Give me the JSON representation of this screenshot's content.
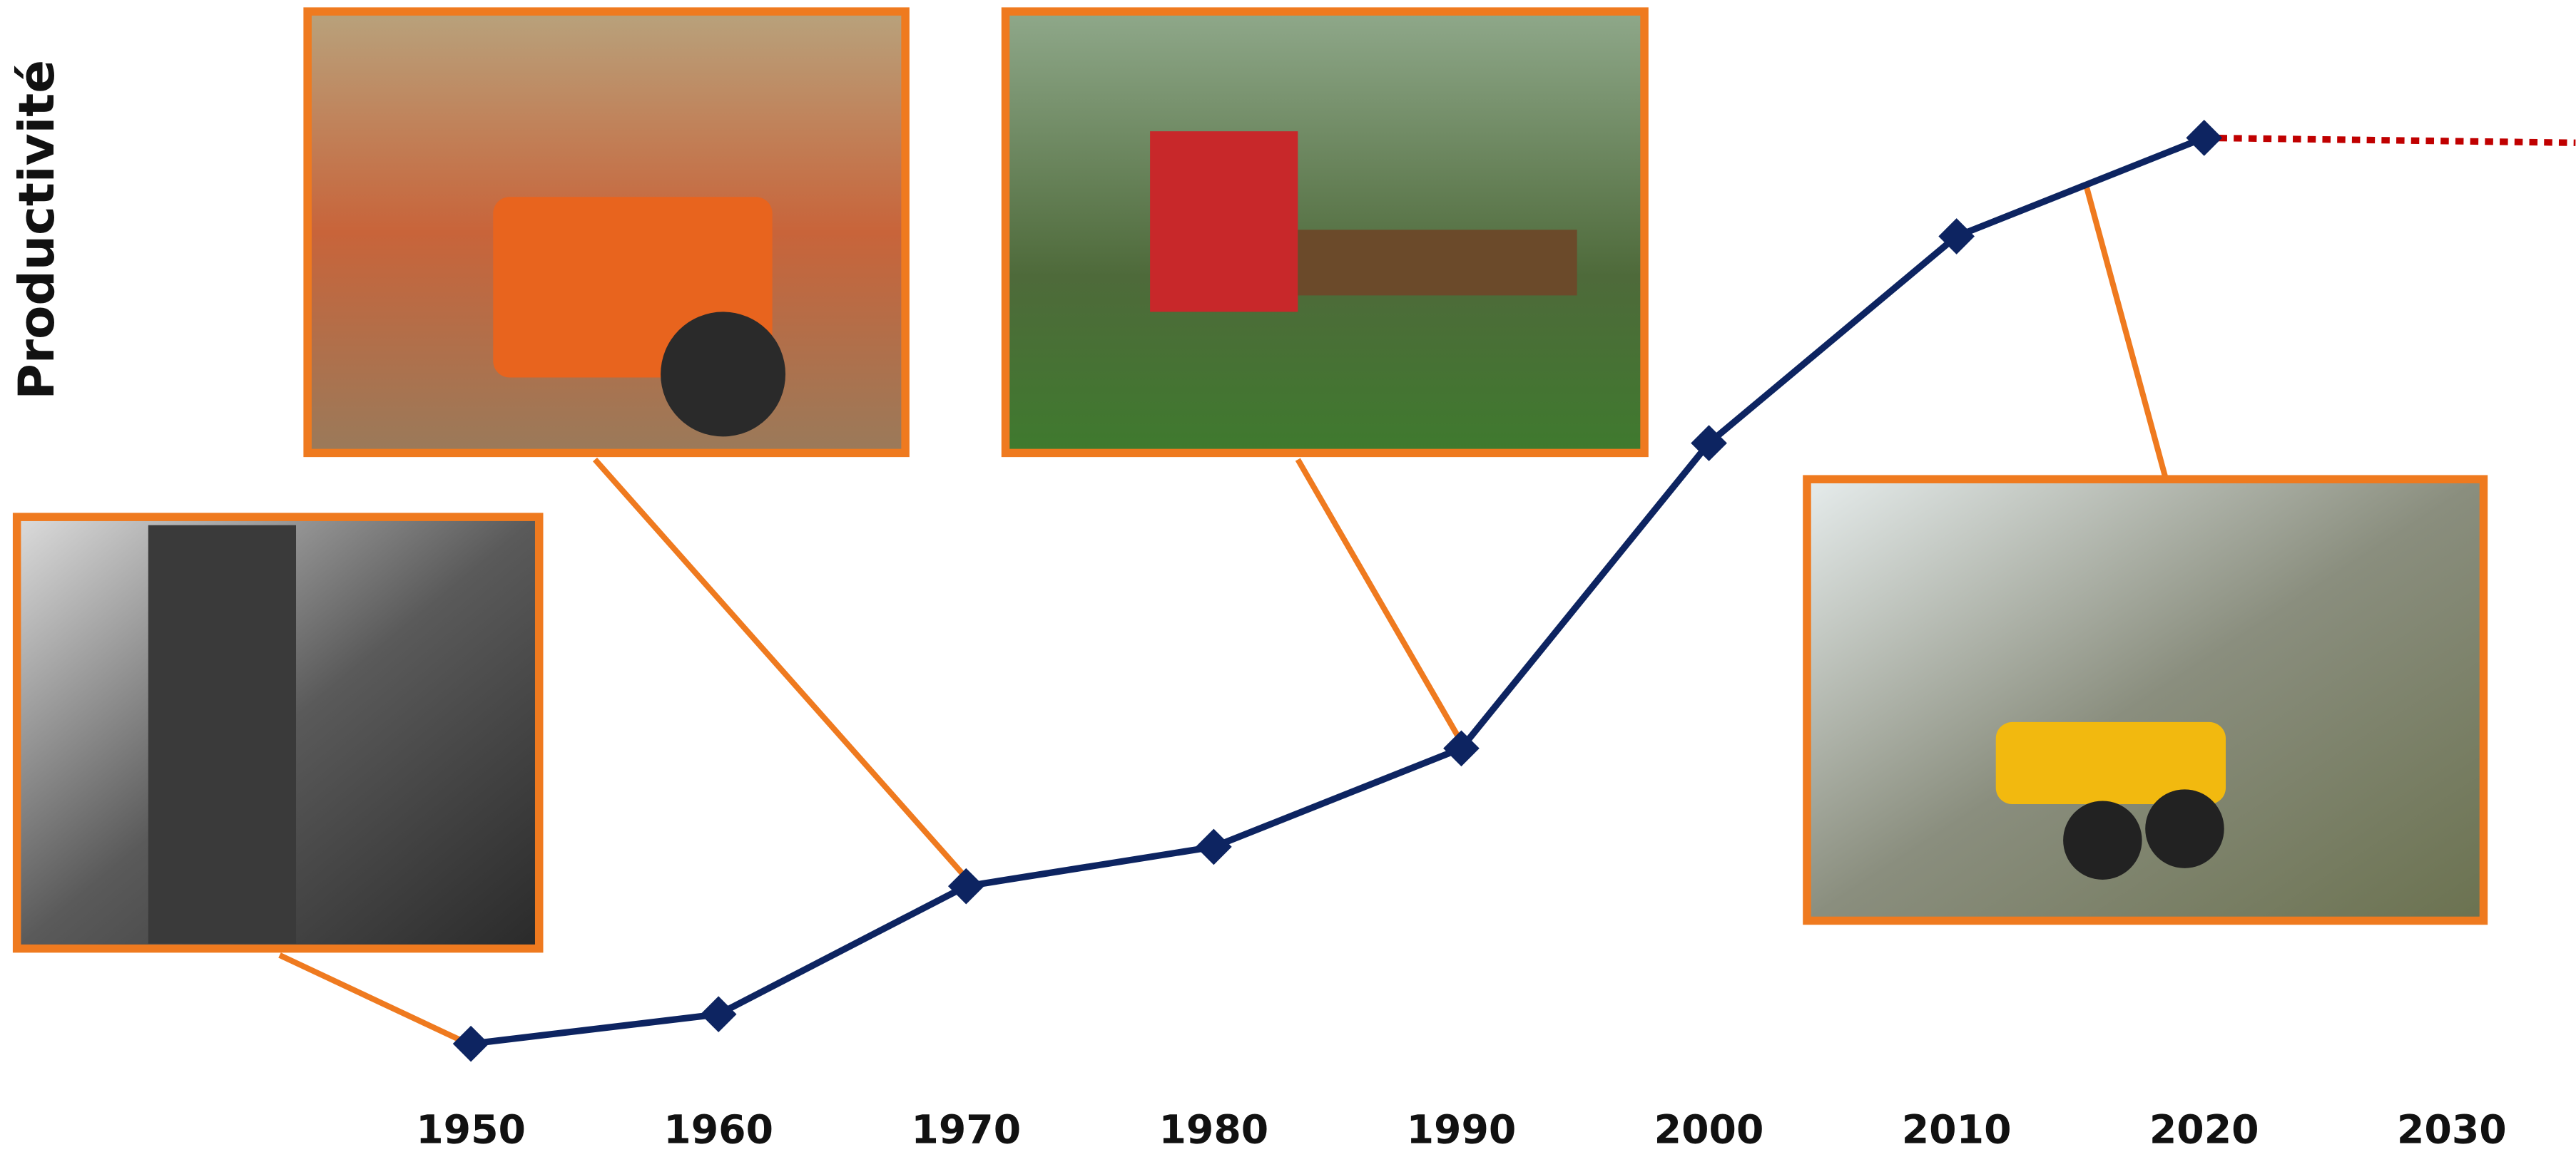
{
  "chart_data": {
    "type": "line",
    "y_label": "Productivité",
    "x": [
      1950,
      1960,
      1970,
      1980,
      1990,
      2000,
      2010,
      2020
    ],
    "series": [
      {
        "color": "#0d2461",
        "values": [
          4,
          7,
          20,
          24,
          34,
          65,
          86,
          96
        ]
      }
    ],
    "xlim": [
      1931,
      2035
    ],
    "xticks": [
      1950,
      1960,
      1970,
      1980,
      1990,
      2000,
      2010,
      2020,
      2030
    ],
    "ylim": [
      0,
      100
    ],
    "projection_color": "#c00000"
  }
}
